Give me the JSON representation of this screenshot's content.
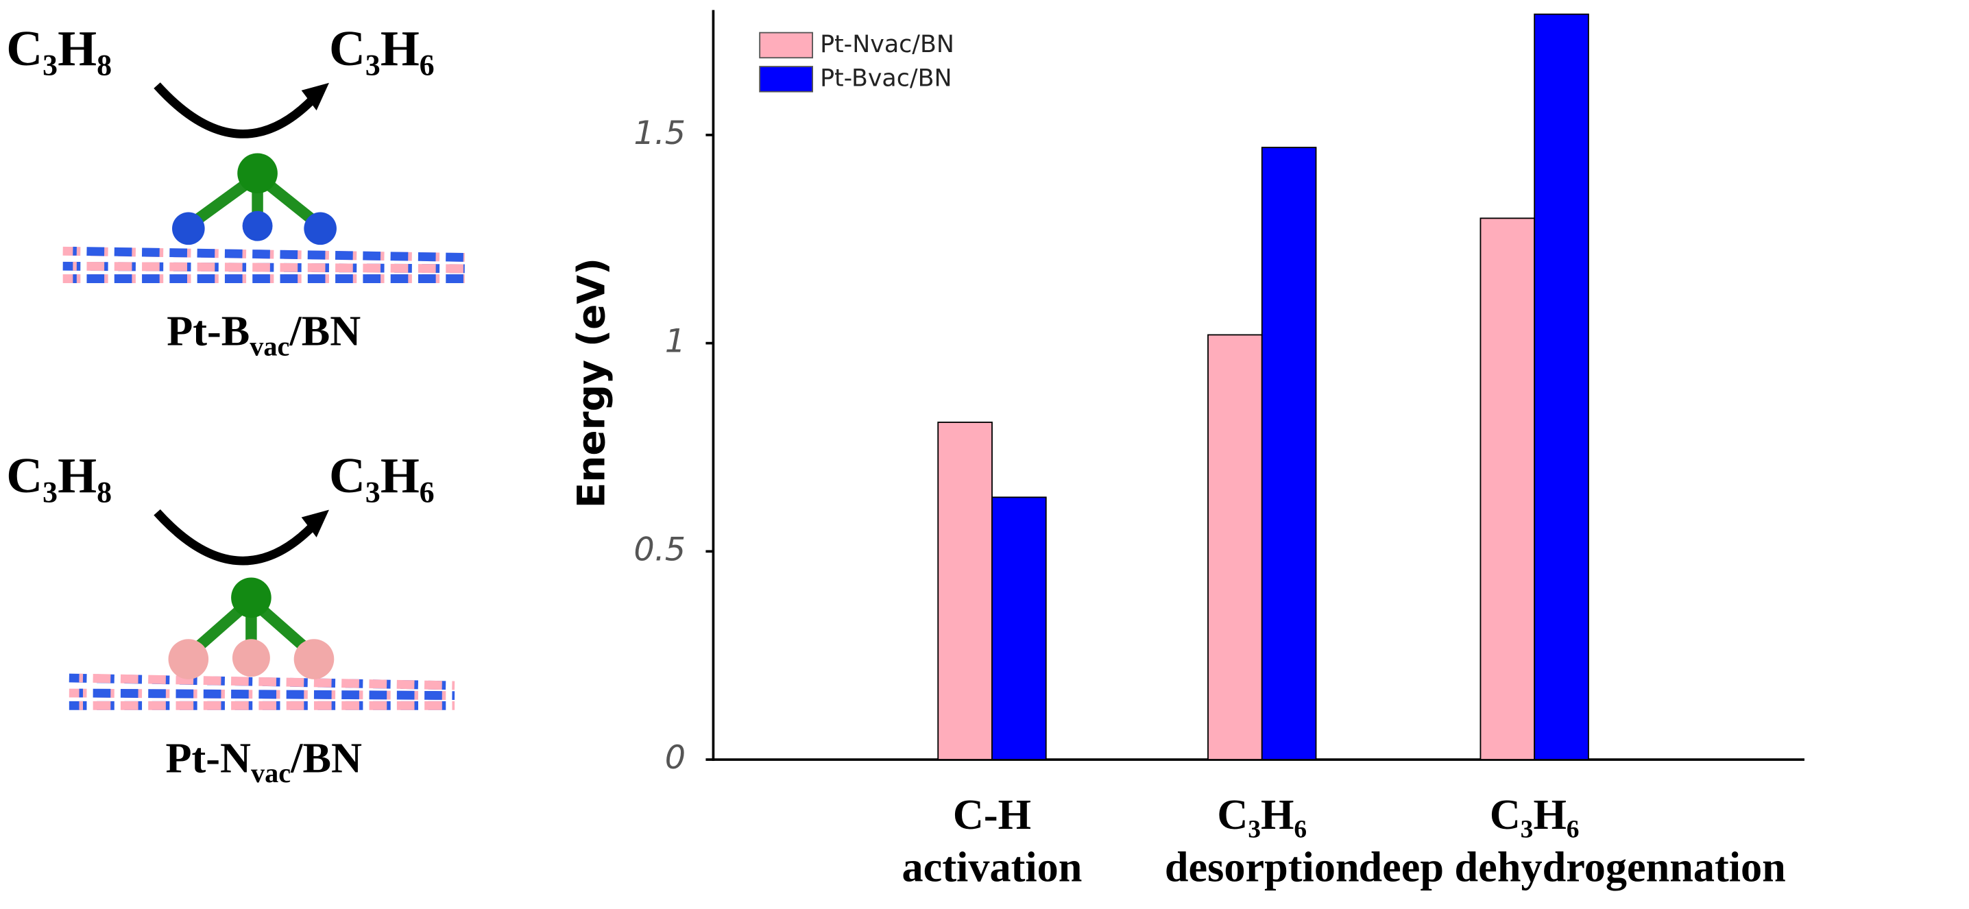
{
  "left_panel": {
    "items": [
      {
        "reactant": "C₃H₈",
        "product": "C₃H₆",
        "label": [
          "Pt-B",
          "vac",
          "/BN"
        ]
      },
      {
        "reactant": "C₃H₈",
        "product": "C₃H₆",
        "label": [
          "Pt-N",
          "vac",
          "/BN"
        ]
      }
    ]
  },
  "chart_data": {
    "type": "bar",
    "y_label": "Energy (eV)",
    "categories": [
      [
        "C-H",
        "activation"
      ],
      [
        "C₃H₆",
        "desorption"
      ],
      [
        "C₃H₆",
        "deep dehydrogennation"
      ]
    ],
    "series": [
      {
        "name": "Pt-Nvac/BN",
        "color": "#ffadbb",
        "values": [
          0.81,
          1.02,
          1.3
        ]
      },
      {
        "name": "Pt-Bvac/BN",
        "color": "#0000ff",
        "values": [
          0.63,
          1.47,
          1.79
        ]
      }
    ],
    "ylim": [
      0,
      1.8
    ],
    "yticks": [
      0,
      0.5,
      1,
      1.5
    ],
    "legend": "upper left",
    "grid": false
  }
}
